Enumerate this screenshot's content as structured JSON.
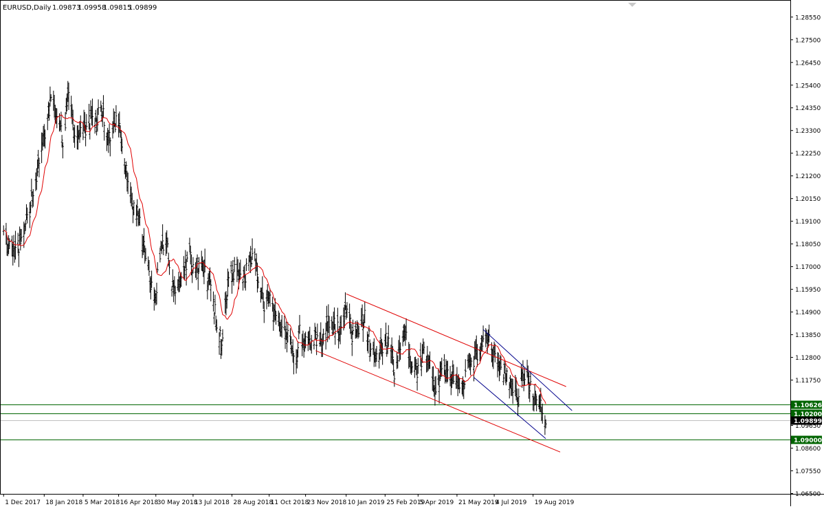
{
  "header": {
    "symbol": "EURUSD,Daily",
    "open": "1.09873",
    "high": "1.09958",
    "low": "1.09815",
    "close": "1.09899"
  },
  "colors": {
    "background": "#ffffff",
    "bars": "#000000",
    "moving_average": "#e00000",
    "channel_red": "#e00000",
    "channel_blue": "#00008b",
    "horizontal_levels": "#006400",
    "price_tag_bg": "#006400",
    "current_tag_bg": "#000000"
  },
  "chart_data": {
    "type": "ohlc",
    "instrument": "EURUSD",
    "timeframe": "Daily",
    "ylim": [
      1.0645,
      1.2905
    ],
    "y_ticks": [
      "1.28550",
      "1.27500",
      "1.26450",
      "1.25400",
      "1.24350",
      "1.23300",
      "1.22250",
      "1.21200",
      "1.20150",
      "1.19100",
      "1.18050",
      "1.17000",
      "1.15950",
      "1.14900",
      "1.13850",
      "1.12800",
      "1.11750",
      "1.10700",
      "1.09650",
      "1.08600",
      "1.07550",
      "1.06500"
    ],
    "x_ticks": [
      "1 Dec 2017",
      "18 Jan 2018",
      "5 Mar 2018",
      "16 Apr 2018",
      "30 May 2018",
      "13 Jul 2018",
      "28 Aug 2018",
      "11 Oct 2018",
      "23 Nov 2018",
      "10 Jan 2019",
      "25 Feb 2019",
      "5 Apr 2019",
      "21 May 2019",
      "4 Jul 2019",
      "19 Aug 2019"
    ],
    "price_path": [
      [
        "1 Dec 2017",
        1.184
      ],
      [
        "14 Dec 2017",
        1.176
      ],
      [
        "27 Dec 2017",
        1.187
      ],
      [
        "5 Jan 2018",
        1.205
      ],
      [
        "12 Jan 2018",
        1.22
      ],
      [
        "18 Jan 2018",
        1.229
      ],
      [
        "25 Jan 2018",
        1.245
      ],
      [
        "2 Feb 2018",
        1.24
      ],
      [
        "9 Feb 2018",
        1.228
      ],
      [
        "16 Feb 2018",
        1.25
      ],
      [
        "23 Feb 2018",
        1.23
      ],
      [
        "5 Mar 2018",
        1.232
      ],
      [
        "12 Mar 2018",
        1.238
      ],
      [
        "20 Mar 2018",
        1.236
      ],
      [
        "27 Mar 2018",
        1.244
      ],
      [
        "4 Apr 2018",
        1.228
      ],
      [
        "10 Apr 2018",
        1.235
      ],
      [
        "16 Apr 2018",
        1.238
      ],
      [
        "20 Apr 2018",
        1.226
      ],
      [
        "26 Apr 2018",
        1.211
      ],
      [
        "2 May 2018",
        1.198
      ],
      [
        "10 May 2018",
        1.192
      ],
      [
        "16 May 2018",
        1.18
      ],
      [
        "23 May 2018",
        1.165
      ],
      [
        "29 May 2018",
        1.155
      ],
      [
        "5 Jun 2018",
        1.177
      ],
      [
        "12 Jun 2018",
        1.18
      ],
      [
        "20 Jun 2018",
        1.158
      ],
      [
        "28 Jun 2018",
        1.165
      ],
      [
        "9 Jul 2018",
        1.176
      ],
      [
        "13 Jul 2018",
        1.168
      ],
      [
        "23 Jul 2018",
        1.172
      ],
      [
        "2 Aug 2018",
        1.16
      ],
      [
        "10 Aug 2018",
        1.145
      ],
      [
        "15 Aug 2018",
        1.134
      ],
      [
        "22 Aug 2018",
        1.158
      ],
      [
        "28 Aug 2018",
        1.168
      ],
      [
        "10 Sep 2018",
        1.163
      ],
      [
        "18 Sep 2018",
        1.172
      ],
      [
        "24 Sep 2018",
        1.178
      ],
      [
        "28 Sep 2018",
        1.162
      ],
      [
        "5 Oct 2018",
        1.151
      ],
      [
        "11 Oct 2018",
        1.158
      ],
      [
        "19 Oct 2018",
        1.146
      ],
      [
        "26 Oct 2018",
        1.138
      ],
      [
        "2 Nov 2018",
        1.14
      ],
      [
        "12 Nov 2018",
        1.125
      ],
      [
        "16 Nov 2018",
        1.139
      ],
      [
        "23 Nov 2018",
        1.134
      ],
      [
        "3 Dec 2018",
        1.137
      ],
      [
        "12 Dec 2018",
        1.132
      ],
      [
        "20 Dec 2018",
        1.143
      ],
      [
        "28 Dec 2018",
        1.143
      ],
      [
        "3 Jan 2019",
        1.138
      ],
      [
        "10 Jan 2019",
        1.151
      ],
      [
        "18 Jan 2019",
        1.137
      ],
      [
        "25 Jan 2019",
        1.14
      ],
      [
        "1 Feb 2019",
        1.146
      ],
      [
        "8 Feb 2019",
        1.133
      ],
      [
        "15 Feb 2019",
        1.128
      ],
      [
        "25 Feb 2019",
        1.136
      ],
      [
        "4 Mar 2019",
        1.132
      ],
      [
        "8 Mar 2019",
        1.119
      ],
      [
        "15 Mar 2019",
        1.133
      ],
      [
        "20 Mar 2019",
        1.141
      ],
      [
        "27 Mar 2019",
        1.126
      ],
      [
        "5 Apr 2019",
        1.122
      ],
      [
        "12 Apr 2019",
        1.13
      ],
      [
        "19 Apr 2019",
        1.124
      ],
      [
        "26 Apr 2019",
        1.114
      ],
      [
        "3 May 2019",
        1.119
      ],
      [
        "10 May 2019",
        1.122
      ],
      [
        "21 May 2019",
        1.116
      ],
      [
        "29 May 2019",
        1.114
      ],
      [
        "5 Jun 2019",
        1.126
      ],
      [
        "13 Jun 2019",
        1.129
      ],
      [
        "21 Jun 2019",
        1.137
      ],
      [
        "26 Jun 2019",
        1.137
      ],
      [
        "4 Jul 2019",
        1.128
      ],
      [
        "10 Jul 2019",
        1.125
      ],
      [
        "17 Jul 2019",
        1.121
      ],
      [
        "24 Jul 2019",
        1.114
      ],
      [
        "1 Aug 2019",
        1.11
      ],
      [
        "6 Aug 2019",
        1.12
      ],
      [
        "13 Aug 2019",
        1.118
      ],
      [
        "19 Aug 2019",
        1.109
      ],
      [
        "23 Aug 2019",
        1.11
      ],
      [
        "29 Aug 2019",
        1.104
      ],
      [
        "3 Sep 2019",
        1.0972
      ]
    ],
    "channels": [
      {
        "color": "red",
        "from": [
          "10 Jan 2019",
          1.1574
        ],
        "to": [
          "27 Sep 2019",
          1.1145
        ]
      },
      {
        "color": "red",
        "from": [
          "5 Dec 2018",
          1.1311
        ],
        "to": [
          "20 Sep 2019",
          1.0842
        ]
      },
      {
        "color": "blue",
        "from": [
          "21 Jun 2019",
          1.1409
        ],
        "to": [
          "4 Oct 2019",
          1.1034
        ]
      },
      {
        "color": "blue",
        "from": [
          "10 Jun 2019",
          1.1187
        ],
        "to": [
          "3 Sep 2019",
          1.0904
        ]
      }
    ],
    "levels": [
      {
        "label": "1.10626",
        "value": 1.10626,
        "style": "solid"
      },
      {
        "label": "1.10200",
        "value": 1.102,
        "style": "solid"
      },
      {
        "label": "1.09000",
        "value": 1.09,
        "style": "solid"
      }
    ],
    "current_price": {
      "label": "1.09899",
      "value": 1.09899
    },
    "grid": false,
    "legend": "none"
  }
}
